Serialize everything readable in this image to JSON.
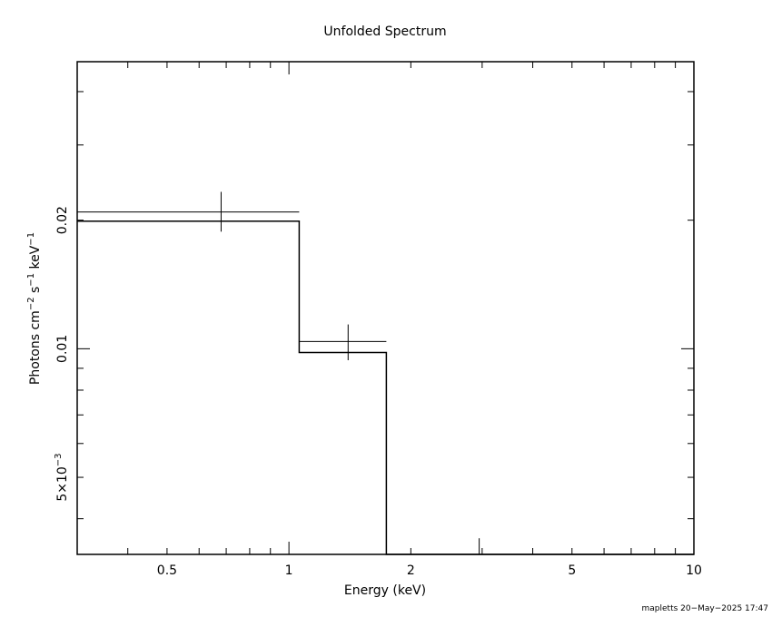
{
  "chart_data": {
    "type": "line",
    "title": "Unfolded Spectrum",
    "xlabel": "Energy (keV)",
    "ylabel": {
      "parts": [
        "Photons cm",
        "−2",
        " s",
        "−1",
        " keV",
        "−1"
      ]
    },
    "x_scale": "log",
    "y_scale": "log",
    "xlim": [
      0.3,
      10
    ],
    "ylim": [
      0.0033,
      0.047
    ],
    "x_tick_labels": [
      {
        "value": 0.5,
        "label": "0.5"
      },
      {
        "value": 1,
        "label": "1"
      },
      {
        "value": 2,
        "label": "2"
      },
      {
        "value": 5,
        "label": "5"
      },
      {
        "value": 10,
        "label": "10"
      }
    ],
    "y_tick_labels": [
      {
        "value": 0.02,
        "label": "0.02"
      },
      {
        "value": 0.01,
        "label": "0.01"
      },
      {
        "value": 0.005,
        "label": "5×10",
        "exp": "−3"
      }
    ],
    "data_points": [
      {
        "x": 0.68,
        "x_low": 0.3,
        "x_high": 1.06,
        "y": 0.0209,
        "y_err_low": 0.0188,
        "y_err_high": 0.0233
      },
      {
        "x": 1.4,
        "x_low": 1.06,
        "x_high": 1.74,
        "y": 0.0104,
        "y_err_low": 0.0094,
        "y_err_high": 0.0114
      },
      {
        "x": 2.95,
        "x_low": 2.95,
        "x_high": 2.95,
        "y": null,
        "y_err_low": 0.0033,
        "y_err_high": 0.0036
      }
    ],
    "model_steps": [
      {
        "x_low": 0.3,
        "x_high": 1.06,
        "y": 0.0199
      },
      {
        "x_low": 1.06,
        "x_high": 1.74,
        "y": 0.0098
      },
      {
        "x_low": 1.74,
        "x_high": 10,
        "y": 0.0033
      }
    ]
  },
  "footer": "mapletts 20−May−2025 17:47"
}
